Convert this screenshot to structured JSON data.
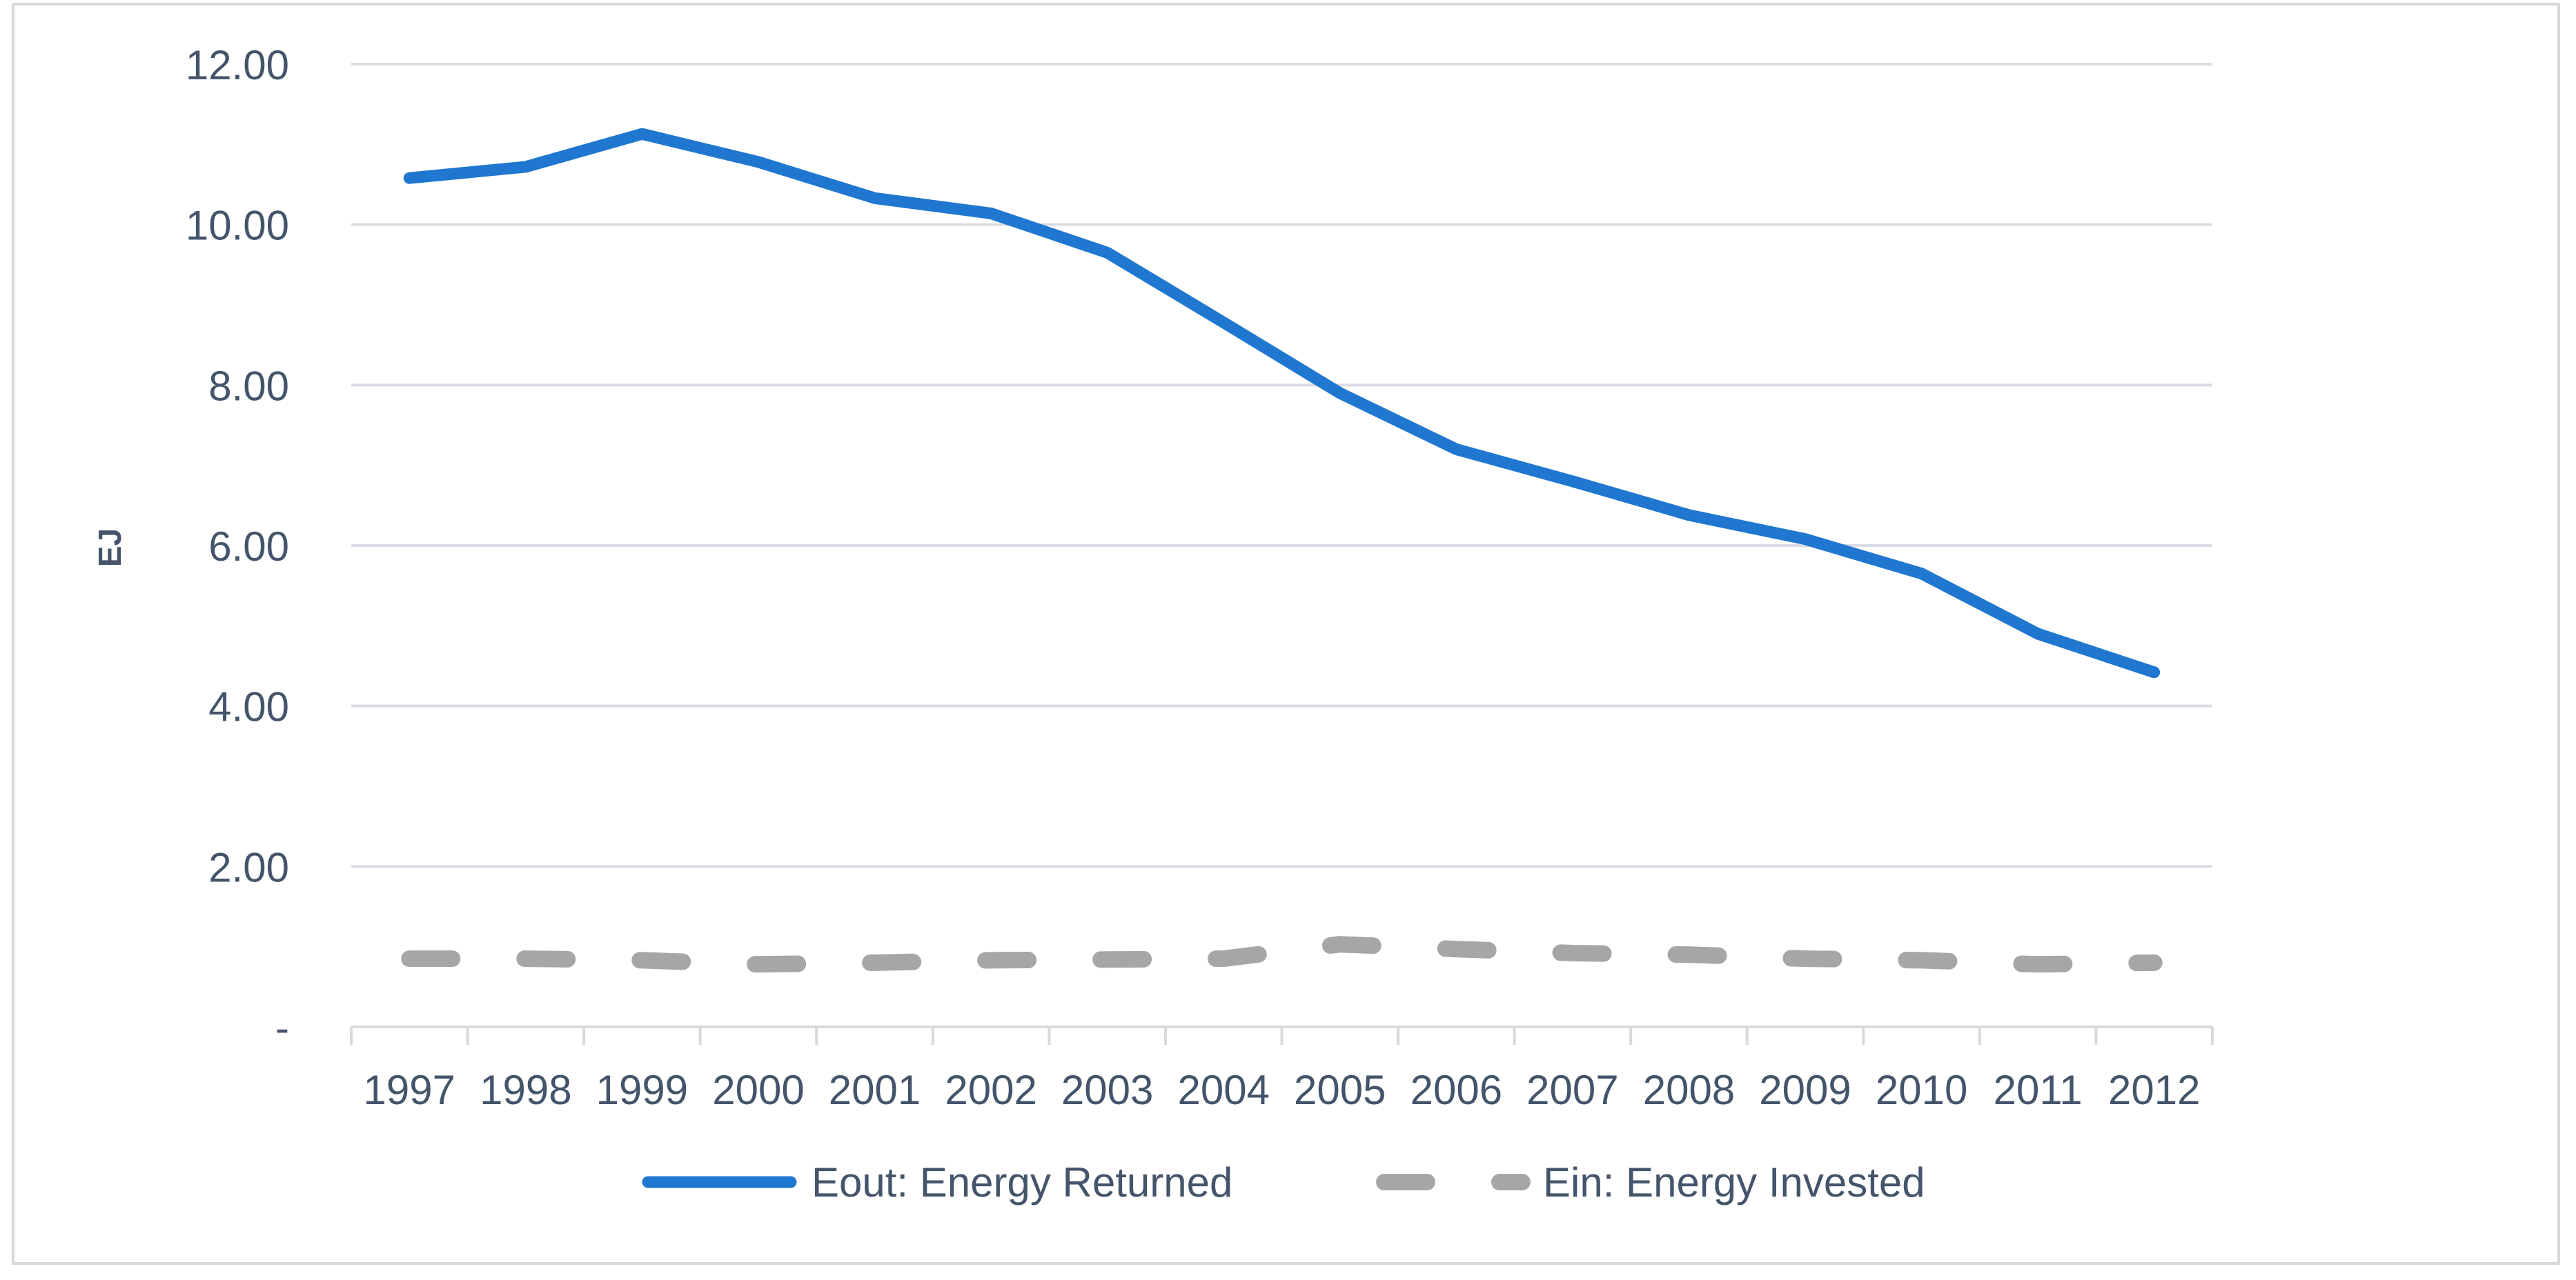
{
  "chart_data": {
    "type": "line",
    "title": "",
    "xlabel": "",
    "ylabel": "EJ",
    "ylim": [
      0,
      12
    ],
    "yticks": [
      0,
      2,
      4,
      6,
      8,
      10,
      12
    ],
    "ytick_labels": [
      "-",
      "2.00",
      "4.00",
      "6.00",
      "8.00",
      "10.00",
      "12.00"
    ],
    "grid": true,
    "legend_position": "bottom",
    "categories": [
      "1997",
      "1998",
      "1999",
      "2000",
      "2001",
      "2002",
      "2003",
      "2004",
      "2005",
      "2006",
      "2007",
      "2008",
      "2009",
      "2010",
      "2011",
      "2012"
    ],
    "series": [
      {
        "name": "Eout: Energy Returned",
        "style": "solid",
        "color": "#1f77d0",
        "values": [
          10.58,
          10.72,
          11.13,
          10.78,
          10.33,
          10.14,
          9.65,
          8.78,
          7.9,
          7.2,
          6.8,
          6.38,
          6.08,
          5.65,
          4.9,
          4.42
        ]
      },
      {
        "name": "Ein: Energy Invested",
        "style": "dashed",
        "color": "#a6a6a6",
        "values": [
          0.85,
          0.85,
          0.83,
          0.78,
          0.8,
          0.83,
          0.84,
          0.85,
          1.03,
          0.97,
          0.92,
          0.9,
          0.85,
          0.83,
          0.78,
          0.8
        ]
      }
    ]
  }
}
